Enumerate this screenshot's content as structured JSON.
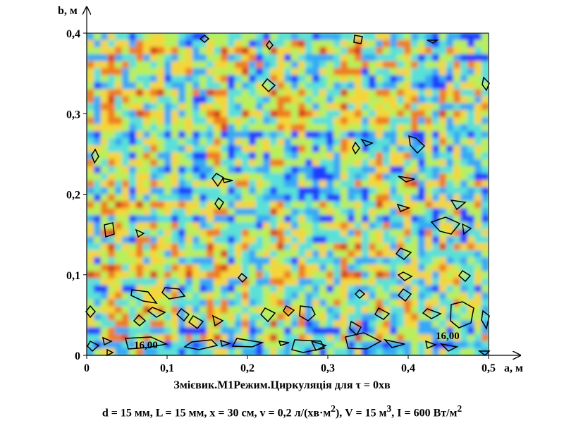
{
  "chart_data": {
    "type": "heatmap",
    "title": "",
    "xlabel": "a, м",
    "ylabel": "b, м",
    "xlim": [
      0,
      0.5
    ],
    "ylim": [
      0,
      0.4
    ],
    "x_ticks": [
      "0",
      "0,1",
      "0,2",
      "0,3",
      "0,4",
      "0,5"
    ],
    "y_ticks": [
      "0",
      "0,1",
      "0,2",
      "0,3",
      "0,4"
    ],
    "contour_labels": [
      {
        "text": "16,00",
        "x": 0.08,
        "y": 0.012
      },
      {
        "text": "16,00",
        "x": 0.453,
        "y": 0.025
      }
    ],
    "colormap": [
      "#1a3cff",
      "#36a9f5",
      "#5ae0d8",
      "#b9ef5a",
      "#f4d63a",
      "#ef7d1e",
      "#d63c14"
    ],
    "grid": false,
    "legend": "none"
  },
  "caption": {
    "line1": "Змієвик.М1Режим.Циркуляція для τ = 0хв",
    "line2_prefix": "d = 15 мм, L = 15 мм, x = 30 см, v = 0,2 л/(хв·м",
    "line2_v": "), V = 15 м",
    "line2_I": ", I = 600 Вт/м"
  }
}
